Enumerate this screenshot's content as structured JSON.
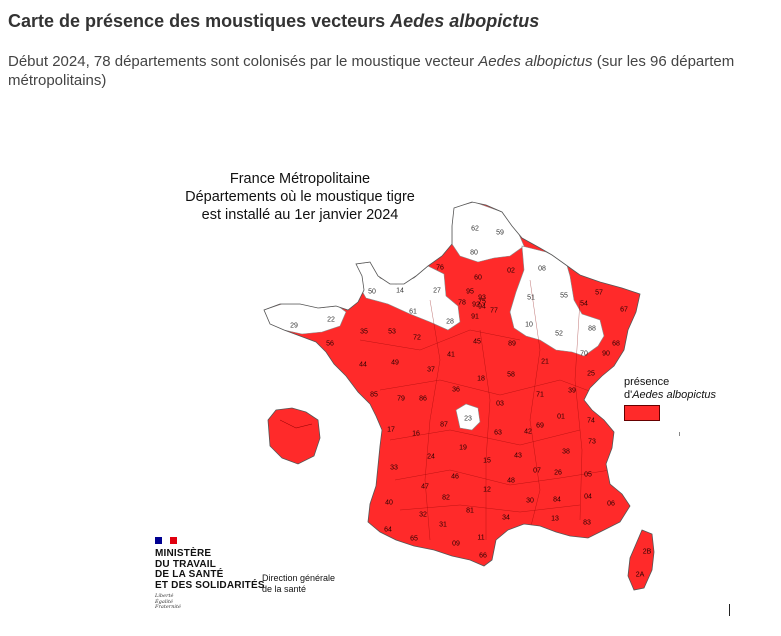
{
  "page": {
    "title_prefix": "Carte de présence des moustiques vecteurs ",
    "title_species": "Aedes albopictus",
    "intro_before": "Début 2024, 78 départements sont colonisés par le moustique vecteur ",
    "intro_species": "Aedes albopictus",
    "intro_after": " (sur les 96 départem",
    "intro_line2": "métropolitains)"
  },
  "map": {
    "title_lines": [
      "France Métropolitaine",
      "Départements où le moustique tigre",
      "est installé au 1er janvier 2024"
    ],
    "colors": {
      "present": "#ff2a2a",
      "absent": "#ffffff",
      "border": "#8a8a8a",
      "present_border": "#8b0000"
    },
    "legend": {
      "line1": "présence",
      "line2_prefix": "d'",
      "line2_species": "Aedes albopictus"
    },
    "departments_present": [
      "76",
      "60",
      "02",
      "95",
      "78",
      "91",
      "94",
      "93",
      "92",
      "75",
      "77",
      "57",
      "67",
      "54",
      "68",
      "90",
      "25",
      "39",
      "21",
      "89",
      "58",
      "45",
      "41",
      "72",
      "53",
      "35",
      "56",
      "44",
      "49",
      "37",
      "18",
      "36",
      "85",
      "79",
      "86",
      "03",
      "71",
      "01",
      "74",
      "69",
      "42",
      "63",
      "87",
      "16",
      "17",
      "24",
      "19",
      "15",
      "43",
      "38",
      "73",
      "26",
      "07",
      "05",
      "04",
      "06",
      "83",
      "13",
      "84",
      "30",
      "34",
      "48",
      "12",
      "46",
      "47",
      "82",
      "81",
      "33",
      "40",
      "64",
      "65",
      "32",
      "31",
      "09",
      "11",
      "66",
      "2B",
      "2A"
    ],
    "departments_absent": [
      "62",
      "59",
      "80",
      "08",
      "50",
      "14",
      "27",
      "61",
      "28",
      "51",
      "55",
      "10",
      "52",
      "29",
      "22",
      "88",
      "70",
      "23"
    ]
  },
  "footer": {
    "ministry_lines": [
      "MINISTÈRE",
      "DU TRAVAIL",
      "DE LA SANTÉ",
      "ET DES SOLIDARITÉS"
    ],
    "motto_lines": [
      "Liberté",
      "Égalité",
      "Fraternité"
    ],
    "direction_lines": [
      "Direction générale",
      "de la santé"
    ]
  }
}
